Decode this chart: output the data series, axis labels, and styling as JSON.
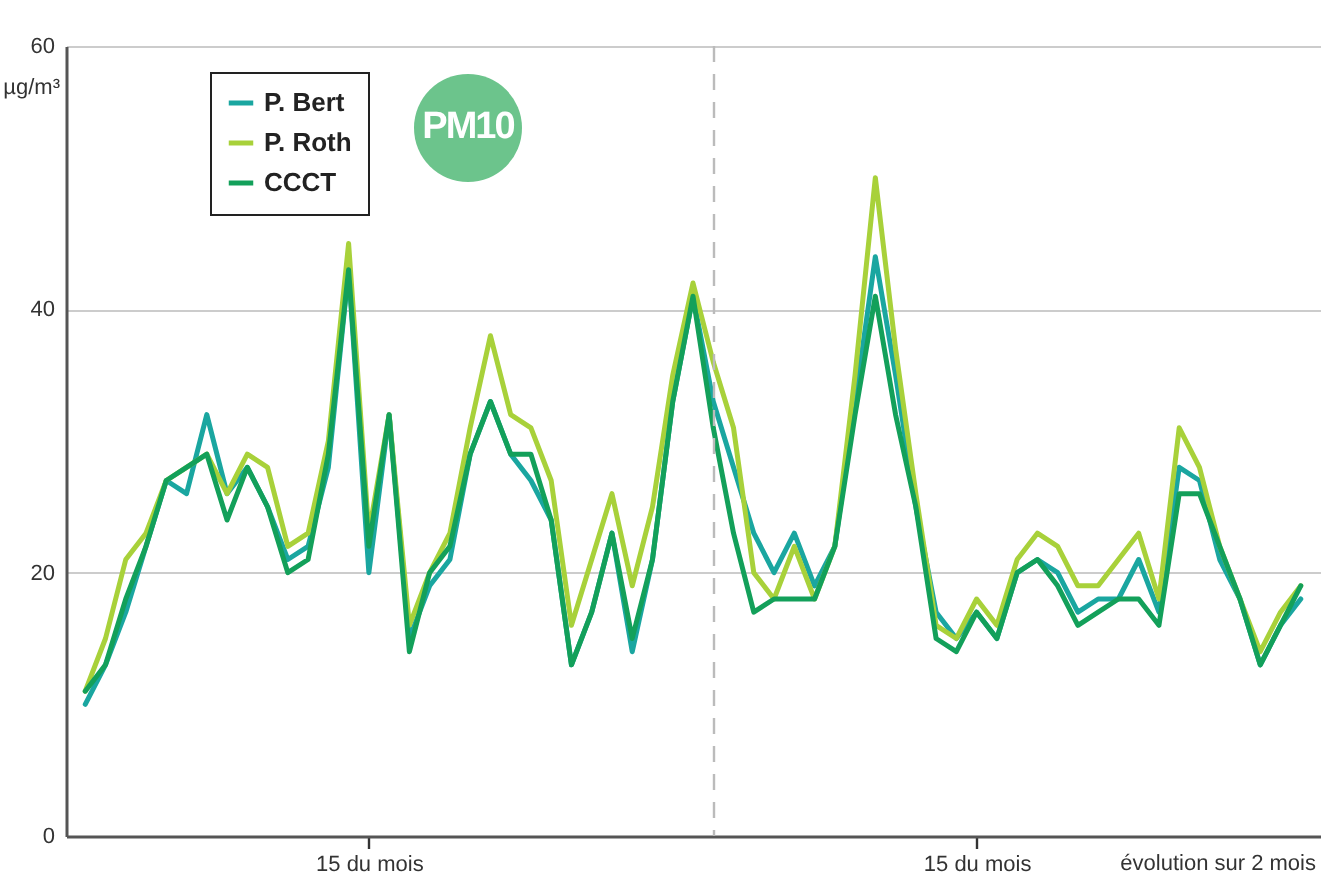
{
  "chart_data": {
    "type": "line",
    "ylabel": "µg/m³",
    "annotations": [
      "PM10",
      "évolution sur 2 mois"
    ],
    "categories": [
      null,
      null,
      null,
      null,
      null,
      null,
      null,
      null,
      null,
      null,
      null,
      null,
      null,
      null,
      "15 du mois",
      null,
      null,
      null,
      null,
      null,
      null,
      null,
      null,
      null,
      null,
      null,
      null,
      null,
      null,
      null,
      null,
      null,
      null,
      null,
      null,
      null,
      null,
      null,
      null,
      null,
      null,
      null,
      null,
      null,
      "15 du mois",
      null,
      null,
      null,
      null,
      null,
      null,
      null,
      null,
      null,
      null,
      null,
      null,
      null,
      null,
      null,
      null
    ],
    "series": [
      {
        "name": "P. Bert",
        "color": "#1aa6a0",
        "values": [
          10,
          13,
          17,
          22,
          27,
          26,
          32,
          26,
          28,
          25,
          21,
          22,
          28,
          43,
          20,
          32,
          15,
          19,
          21,
          29,
          33,
          29,
          27,
          24,
          13,
          17,
          23,
          14,
          21,
          33,
          41,
          33,
          28,
          23,
          20,
          23,
          19,
          22,
          33,
          44,
          35,
          25,
          17,
          15,
          17,
          15,
          20,
          21,
          20,
          17,
          18,
          18,
          21,
          17,
          28,
          27,
          21,
          18,
          13,
          16,
          18
        ]
      },
      {
        "name": "P. Roth",
        "color": "#a8d13a",
        "values": [
          11,
          15,
          21,
          23,
          27,
          28,
          29,
          26,
          29,
          28,
          22,
          23,
          30,
          45,
          23,
          32,
          16,
          20,
          23,
          31,
          38,
          32,
          31,
          27,
          16,
          21,
          26,
          19,
          25,
          35,
          42,
          36,
          31,
          20,
          18,
          22,
          18,
          22,
          35,
          50,
          37,
          26,
          16,
          15,
          18,
          16,
          21,
          23,
          22,
          19,
          19,
          21,
          23,
          18,
          31,
          28,
          22,
          18,
          14,
          17,
          19
        ]
      },
      {
        "name": "CCCT",
        "color": "#13a05a",
        "values": [
          11,
          13,
          18,
          22,
          27,
          28,
          29,
          24,
          28,
          25,
          20,
          21,
          29,
          43,
          22,
          32,
          14,
          20,
          22,
          29,
          33,
          29,
          29,
          24,
          13,
          17,
          23,
          15,
          21,
          33,
          41,
          31,
          23,
          17,
          18,
          18,
          18,
          22,
          32,
          41,
          32,
          25,
          15,
          14,
          17,
          15,
          20,
          21,
          19,
          16,
          17,
          18,
          18,
          16,
          26,
          26,
          22,
          18,
          13,
          16,
          19
        ]
      }
    ],
    "ylim": [
      0,
      60
    ],
    "yticks": [
      0,
      20,
      40,
      60
    ],
    "grid": "y",
    "legend": "top left",
    "line_style": "solid",
    "marker": "none"
  }
}
